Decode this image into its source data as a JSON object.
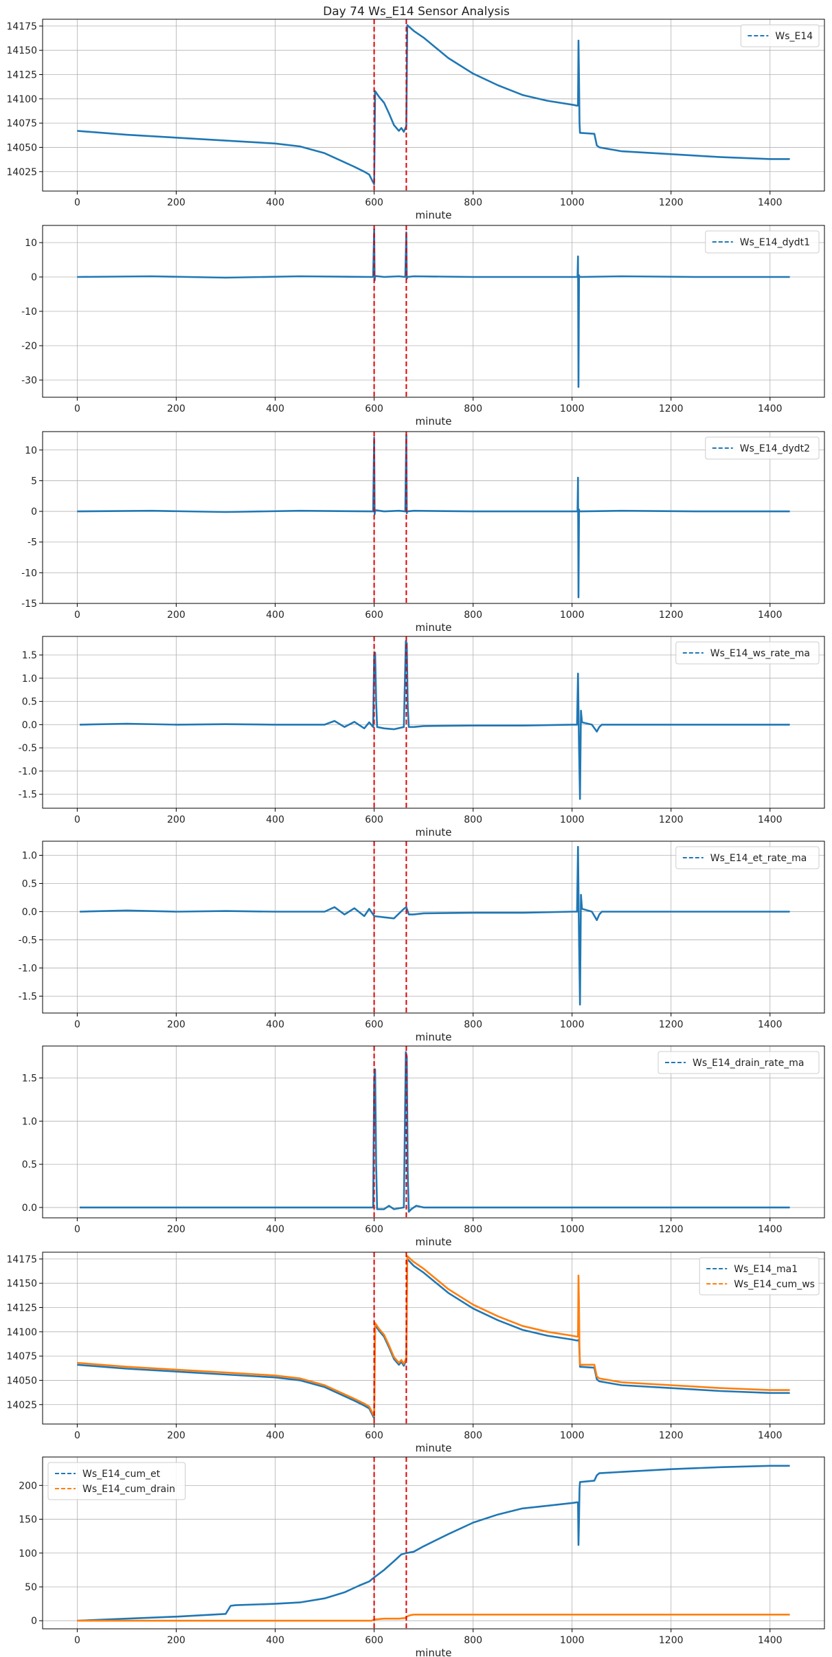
{
  "figure": {
    "title": "Day 74 Ws_E14 Sensor Analysis"
  },
  "chart_data": [
    {
      "type": "line",
      "xlabel": "minute",
      "xlim": [
        -70,
        1510
      ],
      "ylim": [
        14005,
        14182
      ],
      "xticks": [
        0,
        200,
        400,
        600,
        800,
        1000,
        1200,
        1400
      ],
      "yticks": [
        14025,
        14050,
        14075,
        14100,
        14125,
        14150,
        14175
      ],
      "events_x": [
        600,
        665
      ],
      "legend_loc": "upper-right",
      "series": [
        {
          "name": "Ws_E14",
          "color": "#1f77b4",
          "x": [
            0,
            100,
            200,
            300,
            400,
            450,
            500,
            530,
            560,
            580,
            590,
            598,
            600,
            602,
            610,
            620,
            630,
            640,
            650,
            655,
            660,
            665,
            667,
            680,
            700,
            750,
            800,
            850,
            900,
            950,
            1000,
            1010,
            1012,
            1013,
            1014,
            1015,
            1016,
            1045,
            1050,
            1055,
            1100,
            1200,
            1300,
            1400,
            1440
          ],
          "y": [
            14067,
            14063,
            14060,
            14057,
            14054,
            14051,
            14044,
            14037,
            14030,
            14025,
            14022,
            14014,
            14012,
            14108,
            14102,
            14096,
            14085,
            14073,
            14067,
            14070,
            14066,
            14072,
            14176,
            14170,
            14163,
            14142,
            14126,
            14114,
            14104,
            14098,
            14094,
            14093,
            14093,
            14160,
            14120,
            14075,
            14065,
            14064,
            14052,
            14050,
            14046,
            14043,
            14040,
            14038,
            14038
          ]
        }
      ]
    },
    {
      "type": "line",
      "xlabel": "minute",
      "xlim": [
        -70,
        1510
      ],
      "ylim": [
        -35,
        15
      ],
      "xticks": [
        0,
        200,
        400,
        600,
        800,
        1000,
        1200,
        1400
      ],
      "yticks": [
        -30,
        -20,
        -10,
        0,
        10
      ],
      "events_x": [
        600,
        665
      ],
      "legend_loc": "upper-right",
      "series": [
        {
          "name": "Ws_E14_dydt1",
          "color": "#1f77b4",
          "x": [
            0,
            150,
            300,
            450,
            598,
            600,
            601,
            602,
            620,
            650,
            663,
            665,
            666,
            667,
            680,
            800,
            1000,
            1011,
            1012,
            1013,
            1014,
            1015,
            1016,
            1100,
            1250,
            1440
          ],
          "y": [
            0,
            0.2,
            -0.2,
            0.2,
            0,
            14,
            -1,
            0.3,
            0,
            0.2,
            0,
            13,
            -0.5,
            0,
            0.2,
            0,
            0,
            0,
            6,
            -32,
            0.5,
            0,
            0,
            0.2,
            0,
            0
          ]
        }
      ]
    },
    {
      "type": "line",
      "xlabel": "minute",
      "xlim": [
        -70,
        1510
      ],
      "ylim": [
        -15,
        13
      ],
      "xticks": [
        0,
        200,
        400,
        600,
        800,
        1000,
        1200,
        1400
      ],
      "yticks": [
        -15,
        -10,
        -5,
        0,
        5,
        10
      ],
      "events_x": [
        600,
        665
      ],
      "legend_loc": "upper-right",
      "series": [
        {
          "name": "Ws_E14_dydt2",
          "color": "#1f77b4",
          "x": [
            0,
            150,
            300,
            450,
            598,
            600,
            601,
            602,
            620,
            650,
            663,
            665,
            666,
            667,
            680,
            800,
            1000,
            1011,
            1012,
            1013,
            1014,
            1015,
            1016,
            1100,
            1250,
            1440
          ],
          "y": [
            0,
            0.1,
            -0.1,
            0.1,
            0,
            12,
            -0.5,
            0.2,
            0,
            0.1,
            0,
            12.5,
            -0.3,
            0,
            0.1,
            0,
            0,
            0,
            5.5,
            -14,
            0.3,
            0,
            0,
            0.1,
            0,
            0
          ]
        }
      ]
    },
    {
      "type": "line",
      "xlabel": "minute",
      "xlim": [
        -70,
        1510
      ],
      "ylim": [
        -1.8,
        1.9
      ],
      "xticks": [
        0,
        200,
        400,
        600,
        800,
        1000,
        1200,
        1400
      ],
      "yticks": [
        -1.5,
        -1.0,
        -0.5,
        0.0,
        0.5,
        1.0,
        1.5
      ],
      "events_x": [
        600,
        665
      ],
      "legend_loc": "upper-right",
      "series": [
        {
          "name": "Ws_E14_ws_rate_ma",
          "color": "#1f77b4",
          "x": [
            5,
            100,
            200,
            300,
            400,
            500,
            520,
            540,
            560,
            580,
            590,
            598,
            600,
            602,
            604,
            606,
            620,
            640,
            660,
            664,
            666,
            668,
            670,
            680,
            700,
            800,
            900,
            1000,
            1010,
            1012,
            1014,
            1016,
            1018,
            1020,
            1040,
            1050,
            1055,
            1060,
            1100,
            1200,
            1300,
            1440
          ],
          "y": [
            0,
            0.02,
            0,
            0.01,
            0,
            0,
            0.08,
            -0.05,
            0.06,
            -0.08,
            0.05,
            -0.05,
            1.5,
            1.55,
            0.5,
            -0.05,
            -0.08,
            -0.1,
            -0.05,
            1.8,
            1.75,
            0.4,
            -0.05,
            -0.05,
            -0.03,
            -0.02,
            -0.02,
            0,
            0,
            1.1,
            -0.5,
            -1.6,
            0.3,
            0.05,
            0,
            -0.15,
            -0.05,
            0,
            0,
            0,
            0,
            0
          ]
        }
      ]
    },
    {
      "type": "line",
      "xlabel": "minute",
      "xlim": [
        -70,
        1510
      ],
      "ylim": [
        -1.8,
        1.25
      ],
      "xticks": [
        0,
        200,
        400,
        600,
        800,
        1000,
        1200,
        1400
      ],
      "yticks": [
        -1.5,
        -1.0,
        -0.5,
        0.0,
        0.5,
        1.0
      ],
      "events_x": [
        600,
        665
      ],
      "legend_loc": "upper-right",
      "series": [
        {
          "name": "Ws_E14_et_rate_ma",
          "color": "#1f77b4",
          "x": [
            5,
            100,
            200,
            300,
            400,
            500,
            520,
            540,
            560,
            580,
            590,
            598,
            600,
            620,
            640,
            660,
            665,
            670,
            680,
            700,
            800,
            900,
            1000,
            1010,
            1012,
            1014,
            1016,
            1018,
            1020,
            1040,
            1050,
            1055,
            1060,
            1100,
            1200,
            1300,
            1440
          ],
          "y": [
            0,
            0.02,
            0,
            0.01,
            0,
            0,
            0.08,
            -0.05,
            0.06,
            -0.08,
            0.05,
            -0.05,
            -0.08,
            -0.1,
            -0.12,
            0.05,
            0.08,
            -0.05,
            -0.05,
            -0.03,
            -0.02,
            -0.02,
            0,
            0,
            1.15,
            -0.5,
            -1.65,
            0.3,
            0.05,
            0,
            -0.15,
            -0.05,
            0,
            0,
            0,
            0,
            0
          ]
        }
      ]
    },
    {
      "type": "line",
      "xlabel": "minute",
      "xlim": [
        -70,
        1510
      ],
      "ylim": [
        -0.12,
        1.87
      ],
      "xticks": [
        0,
        200,
        400,
        600,
        800,
        1000,
        1200,
        1400
      ],
      "yticks": [
        0.0,
        0.5,
        1.0,
        1.5
      ],
      "events_x": [
        600,
        665
      ],
      "legend_loc": "upper-right",
      "series": [
        {
          "name": "Ws_E14_drain_rate_ma",
          "color": "#1f77b4",
          "x": [
            5,
            300,
            580,
            598,
            600,
            602,
            604,
            606,
            620,
            630,
            640,
            660,
            664,
            666,
            668,
            670,
            675,
            685,
            700,
            800,
            1000,
            1200,
            1440
          ],
          "y": [
            0,
            0,
            0,
            0,
            1.5,
            1.6,
            0.5,
            -0.02,
            -0.02,
            0.02,
            -0.02,
            0,
            1.8,
            1.75,
            0.4,
            -0.05,
            -0.02,
            0.02,
            0,
            0,
            0,
            0,
            0
          ]
        }
      ]
    },
    {
      "type": "line",
      "xlabel": "minute",
      "xlim": [
        -70,
        1510
      ],
      "ylim": [
        14005,
        14182
      ],
      "xticks": [
        0,
        200,
        400,
        600,
        800,
        1000,
        1200,
        1400
      ],
      "yticks": [
        14025,
        14050,
        14075,
        14100,
        14125,
        14150,
        14175
      ],
      "events_x": [
        600,
        665
      ],
      "legend_loc": "upper-right",
      "series": [
        {
          "name": "Ws_E14_ma1",
          "color": "#1f77b4",
          "x": [
            0,
            100,
            200,
            300,
            400,
            450,
            500,
            530,
            560,
            580,
            590,
            598,
            600,
            602,
            610,
            620,
            630,
            640,
            650,
            655,
            660,
            665,
            667,
            680,
            700,
            750,
            800,
            850,
            900,
            950,
            1000,
            1010,
            1012,
            1014,
            1016,
            1045,
            1050,
            1055,
            1100,
            1200,
            1300,
            1400,
            1440
          ],
          "y": [
            14066,
            14062,
            14059,
            14056,
            14053,
            14050,
            14043,
            14036,
            14029,
            14024,
            14021,
            14013,
            14011,
            14107,
            14101,
            14095,
            14084,
            14072,
            14066,
            14069,
            14065,
            14071,
            14175,
            14168,
            14161,
            14140,
            14124,
            14112,
            14102,
            14096,
            14092,
            14091,
            14091,
            14092,
            14064,
            14063,
            14051,
            14049,
            14045,
            14042,
            14039,
            14037,
            14037
          ]
        },
        {
          "name": "Ws_E14_cum_ws",
          "color": "#ff7f0e",
          "x": [
            0,
            100,
            200,
            300,
            400,
            450,
            500,
            530,
            560,
            580,
            590,
            598,
            600,
            602,
            610,
            620,
            630,
            640,
            650,
            655,
            660,
            665,
            667,
            680,
            700,
            750,
            800,
            850,
            900,
            950,
            1000,
            1010,
            1012,
            1013,
            1014,
            1015,
            1016,
            1045,
            1050,
            1055,
            1100,
            1200,
            1300,
            1400,
            1440
          ],
          "y": [
            14068,
            14064,
            14061,
            14058,
            14055,
            14052,
            14045,
            14038,
            14031,
            14026,
            14023,
            14015,
            14013,
            14109,
            14103,
            14097,
            14086,
            14074,
            14068,
            14071,
            14067,
            14073,
            14178,
            14172,
            14165,
            14144,
            14128,
            14116,
            14106,
            14100,
            14096,
            14095,
            14095,
            14158,
            14125,
            14080,
            14066,
            14066,
            14054,
            14052,
            14048,
            14045,
            14042,
            14040,
            14040
          ]
        }
      ]
    },
    {
      "type": "line",
      "xlabel": "minute",
      "xlim": [
        -70,
        1510
      ],
      "ylim": [
        -12,
        242
      ],
      "xticks": [
        0,
        200,
        400,
        600,
        800,
        1000,
        1200,
        1400
      ],
      "yticks": [
        0,
        50,
        100,
        150,
        200
      ],
      "events_x": [
        600,
        665
      ],
      "legend_loc": "upper-left",
      "series": [
        {
          "name": "Ws_E14_cum_et",
          "color": "#1f77b4",
          "x": [
            0,
            100,
            200,
            300,
            310,
            320,
            400,
            450,
            500,
            540,
            570,
            590,
            600,
            620,
            640,
            655,
            665,
            680,
            700,
            750,
            800,
            850,
            900,
            950,
            1000,
            1010,
            1012,
            1013,
            1014,
            1015,
            1016,
            1045,
            1050,
            1055,
            1100,
            1200,
            1300,
            1400,
            1440
          ],
          "y": [
            0,
            3,
            6,
            10,
            22,
            23,
            25,
            27,
            33,
            42,
            52,
            58,
            64,
            75,
            88,
            98,
            100,
            102,
            110,
            128,
            145,
            157,
            166,
            170,
            174,
            175,
            175,
            112,
            150,
            195,
            205,
            207,
            215,
            218,
            220,
            224,
            227,
            229,
            229
          ]
        },
        {
          "name": "Ws_E14_cum_drain",
          "color": "#ff7f0e",
          "x": [
            0,
            300,
            595,
            598,
            604,
            620,
            650,
            663,
            666,
            672,
            680,
            700,
            1000,
            1440
          ],
          "y": [
            0,
            0,
            0,
            1,
            2,
            3,
            3,
            4,
            6,
            8,
            9,
            9,
            9,
            9
          ]
        }
      ]
    }
  ]
}
